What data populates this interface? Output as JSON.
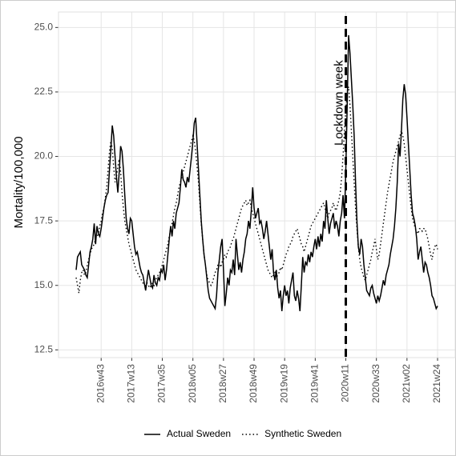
{
  "chart_data": {
    "type": "line",
    "y_label": "Mortality/100,000",
    "categories": [
      null,
      null,
      null,
      null,
      null,
      null,
      null,
      null,
      null,
      null,
      null,
      null,
      null,
      null,
      null,
      null,
      null,
      null,
      "2016w43",
      null,
      null,
      null,
      null,
      null,
      null,
      null,
      null,
      null,
      null,
      null,
      null,
      null,
      null,
      null,
      null,
      null,
      null,
      null,
      null,
      null,
      "2017w13",
      null,
      null,
      null,
      null,
      null,
      null,
      null,
      null,
      null,
      null,
      null,
      null,
      null,
      null,
      null,
      null,
      null,
      null,
      null,
      null,
      null,
      "2017w35",
      null,
      null,
      null,
      null,
      null,
      null,
      null,
      null,
      null,
      null,
      null,
      null,
      null,
      null,
      null,
      null,
      null,
      null,
      null,
      null,
      null,
      "2018w05",
      null,
      null,
      null,
      null,
      null,
      null,
      null,
      null,
      null,
      null,
      null,
      null,
      null,
      null,
      null,
      null,
      null,
      null,
      null,
      null,
      null,
      "2018w27",
      null,
      null,
      null,
      null,
      null,
      null,
      null,
      null,
      null,
      null,
      null,
      null,
      null,
      null,
      null,
      null,
      null,
      null,
      null,
      null,
      null,
      "2018w49",
      null,
      null,
      null,
      null,
      null,
      null,
      null,
      null,
      null,
      null,
      null,
      null,
      null,
      null,
      null,
      null,
      null,
      null,
      null,
      null,
      null,
      "2019w19",
      null,
      null,
      null,
      null,
      null,
      null,
      null,
      null,
      null,
      null,
      null,
      null,
      null,
      null,
      null,
      null,
      null,
      null,
      null,
      null,
      null,
      "2019w41",
      null,
      null,
      null,
      null,
      null,
      null,
      null,
      null,
      null,
      null,
      null,
      null,
      null,
      null,
      null,
      null,
      null,
      null,
      null,
      null,
      null,
      "2020w11",
      null,
      null,
      null,
      null,
      null,
      null,
      null,
      null,
      null,
      null,
      null,
      null,
      null,
      null,
      null,
      null,
      null,
      null,
      null,
      null,
      null,
      "2020w33",
      null,
      null,
      null,
      null,
      null,
      null,
      null,
      null,
      null,
      null,
      null,
      null,
      null,
      null,
      null,
      null,
      null,
      null,
      null,
      null,
      null,
      "2021w02",
      null,
      null,
      null,
      null,
      null,
      null,
      null,
      null,
      null,
      null,
      null,
      null,
      null,
      null,
      null,
      null,
      null,
      null,
      null,
      null,
      null,
      "2021w24"
    ],
    "series": [
      {
        "name": "Actual Sweden",
        "color": "#000000",
        "dash": "solid",
        "values": [
          15.6,
          16.1,
          16.2,
          16.3,
          15.8,
          15.7,
          15.6,
          15.4,
          15.3,
          15.8,
          16.3,
          16.5,
          16.8,
          17.4,
          16.6,
          17.3,
          17.0,
          16.9,
          17.2,
          17.6,
          18.0,
          18.3,
          18.5,
          18.6,
          19.5,
          20.3,
          21.2,
          20.8,
          20.0,
          19.2,
          18.6,
          19.4,
          20.4,
          20.2,
          19.5,
          18.5,
          17.6,
          17.2,
          17.0,
          17.6,
          17.5,
          17.0,
          16.5,
          16.2,
          16.3,
          16.0,
          15.7,
          15.5,
          15.4,
          15.1,
          14.8,
          15.2,
          15.6,
          15.3,
          15.0,
          14.9,
          15.4,
          15.1,
          15.0,
          15.3,
          15.2,
          15.6,
          15.5,
          15.8,
          15.2,
          15.6,
          16.2,
          16.8,
          17.3,
          16.9,
          17.5,
          17.2,
          17.8,
          18.0,
          18.2,
          18.8,
          19.5,
          19.1,
          19.0,
          18.8,
          19.2,
          19.0,
          19.5,
          20.0,
          20.6,
          21.3,
          21.5,
          20.5,
          19.5,
          18.5,
          17.5,
          16.8,
          16.2,
          15.8,
          15.3,
          14.8,
          14.5,
          14.4,
          14.3,
          14.2,
          14.1,
          14.6,
          15.5,
          16.0,
          16.5,
          16.8,
          15.6,
          14.2,
          14.7,
          15.3,
          15.0,
          15.6,
          15.5,
          16.0,
          15.4,
          16.8,
          16.2,
          15.6,
          15.9,
          15.5,
          16.0,
          16.3,
          16.8,
          17.0,
          17.5,
          17.2,
          17.9,
          18.8,
          18.0,
          17.6,
          17.8,
          18.0,
          17.4,
          17.5,
          17.2,
          16.8,
          17.1,
          17.5,
          17.0,
          16.5,
          16.0,
          16.4,
          15.5,
          15.2,
          15.6,
          14.9,
          14.5,
          14.8,
          14.0,
          14.6,
          15.0,
          14.6,
          14.8,
          14.3,
          14.9,
          15.2,
          15.5,
          14.6,
          14.4,
          14.8,
          14.5,
          14.0,
          15.0,
          16.1,
          15.5,
          15.9,
          15.8,
          16.2,
          15.9,
          16.3,
          16.1,
          16.5,
          16.8,
          16.4,
          16.9,
          16.5,
          17.0,
          16.7,
          17.5,
          17.2,
          18.3,
          17.6,
          17.0,
          17.4,
          17.6,
          17.8,
          17.2,
          17.5,
          17.3,
          16.9,
          17.5,
          17.8,
          18.5,
          17.6,
          19.5,
          22.0,
          24.7,
          24.0,
          23.0,
          22.0,
          20.8,
          19.0,
          17.5,
          16.5,
          16.2,
          16.8,
          16.5,
          15.8,
          15.3,
          14.8,
          14.7,
          14.6,
          14.9,
          15.0,
          14.7,
          14.5,
          14.3,
          14.6,
          14.4,
          14.6,
          14.9,
          15.2,
          15.0,
          15.4,
          15.6,
          15.8,
          16.2,
          16.5,
          16.8,
          17.3,
          18.0,
          19.0,
          20.5,
          20.0,
          21.0,
          22.2,
          22.8,
          22.4,
          21.5,
          20.5,
          19.5,
          18.5,
          17.8,
          17.6,
          17.3,
          16.8,
          16.0,
          16.3,
          16.5,
          16.0,
          15.5,
          15.9,
          15.8,
          15.5,
          15.3,
          15.0,
          14.6,
          14.5,
          14.3,
          14.1,
          14.2
        ]
      },
      {
        "name": "Synthetic Sweden",
        "color": "#000000",
        "dash": "dotted",
        "values": [
          15.3,
          15.0,
          14.7,
          15.2,
          15.5,
          15.6,
          15.4,
          15.5,
          15.8,
          16.0,
          16.2,
          16.4,
          16.5,
          16.6,
          16.8,
          16.9,
          17.0,
          17.3,
          17.5,
          17.8,
          18.0,
          18.4,
          18.8,
          19.5,
          20.2,
          20.6,
          20.3,
          19.6,
          19.0,
          19.2,
          19.6,
          19.9,
          19.4,
          18.6,
          18.0,
          17.5,
          17.2,
          16.9,
          16.6,
          16.4,
          16.2,
          16.0,
          15.8,
          15.6,
          15.5,
          15.4,
          15.3,
          15.2,
          15.1,
          15.0,
          15.0,
          15.1,
          15.0,
          14.9,
          15.0,
          15.1,
          15.0,
          15.2,
          15.3,
          15.4,
          15.5,
          15.6,
          15.8,
          16.0,
          16.2,
          16.4,
          16.6,
          16.9,
          17.2,
          17.4,
          17.7,
          18.0,
          18.2,
          18.5,
          18.8,
          19.0,
          19.2,
          19.4,
          19.6,
          19.8,
          20.0,
          20.2,
          20.4,
          20.6,
          20.8,
          20.6,
          20.2,
          19.6,
          19.0,
          18.2,
          17.4,
          16.8,
          16.2,
          15.8,
          15.4,
          15.2,
          15.1,
          15.0,
          15.1,
          15.3,
          15.5,
          15.6,
          15.8,
          15.9,
          15.7,
          15.9,
          16.0,
          16.2,
          16.1,
          16.3,
          16.4,
          16.5,
          16.7,
          16.8,
          17.0,
          17.2,
          17.4,
          17.6,
          17.8,
          18.0,
          18.1,
          18.2,
          18.3,
          18.1,
          18.2,
          18.3,
          18.0,
          17.8,
          17.6,
          17.4,
          17.2,
          17.0,
          16.8,
          16.6,
          16.4,
          16.2,
          16.0,
          15.8,
          15.6,
          15.5,
          15.4,
          15.3,
          15.4,
          15.5,
          15.3,
          15.4,
          15.5,
          15.7,
          15.6,
          15.8,
          16.0,
          16.2,
          16.3,
          16.5,
          16.6,
          16.7,
          16.9,
          17.0,
          17.1,
          17.2,
          17.0,
          16.8,
          16.6,
          16.5,
          16.3,
          16.5,
          16.7,
          16.9,
          17.1,
          17.3,
          17.4,
          17.5,
          17.6,
          17.7,
          17.8,
          17.9,
          18.0,
          18.1,
          18.2,
          18.0,
          17.8,
          17.6,
          17.8,
          17.9,
          18.0,
          18.2,
          18.0,
          17.9,
          18.1,
          18.3,
          18.6,
          19.2,
          20.0,
          21.0,
          21.8,
          22.5,
          22.7,
          22.0,
          21.0,
          20.0,
          19.0,
          18.0,
          17.2,
          16.5,
          16.0,
          15.7,
          15.5,
          15.3,
          15.2,
          15.4,
          15.6,
          15.8,
          16.0,
          16.3,
          16.5,
          16.8,
          16.4,
          16.0,
          16.2,
          16.6,
          17.0,
          17.4,
          17.8,
          18.2,
          18.6,
          18.9,
          19.2,
          19.5,
          19.8,
          20.0,
          20.2,
          20.4,
          20.6,
          20.8,
          21.0,
          20.8,
          20.5,
          20.0,
          19.5,
          19.0,
          18.5,
          18.0,
          17.6,
          17.4,
          17.2,
          17.1,
          17.0,
          17.2,
          17.2,
          17.1,
          17.2,
          17.2,
          17.0,
          16.8,
          16.5,
          16.2,
          16.0,
          16.3,
          16.5,
          16.6,
          16.4
        ]
      }
    ],
    "ylim": [
      12.2,
      25.6
    ],
    "yticks": [
      12.5,
      {
        "value": 15,
        "label": "15.0"
      },
      17.5,
      {
        "value": 20,
        "label": "20.0"
      },
      22.5,
      {
        "value": 25,
        "label": "25.0"
      }
    ],
    "grid": true,
    "legend": "bottom",
    "annotations": [
      {
        "text": "Lockdown week",
        "x": "2020w11"
      }
    ]
  }
}
